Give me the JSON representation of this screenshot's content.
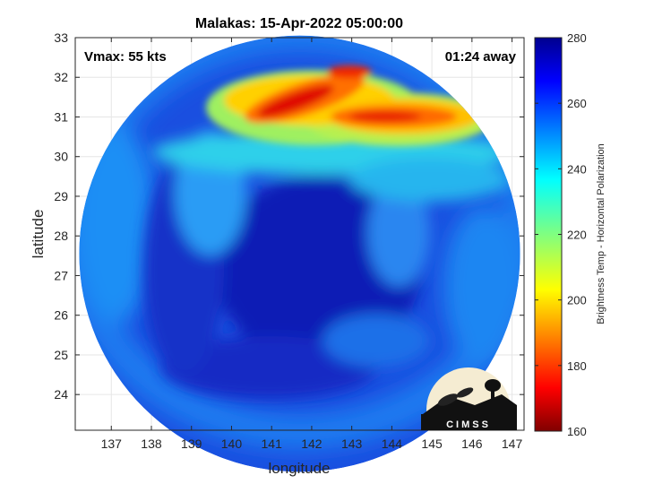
{
  "title": "Malakas: 15-Apr-2022 05:00:00",
  "annotations": {
    "vmax": "Vmax: 55 kts",
    "time_away": "01:24 away"
  },
  "logo_text": "CIMSS",
  "chart_data": {
    "type": "heatmap",
    "title": "Malakas: 15-Apr-2022 05:00:00",
    "xlabel": "longitude",
    "ylabel": "latitude",
    "xlim": [
      136.1,
      147.3
    ],
    "ylim": [
      23.1,
      33.0
    ],
    "xticks": [
      137,
      138,
      139,
      140,
      141,
      142,
      143,
      144,
      145,
      146,
      147
    ],
    "yticks": [
      24,
      25,
      26,
      27,
      28,
      29,
      30,
      31,
      32,
      33
    ],
    "grid": true,
    "colorbar": {
      "label": "Brightness Temp - Horizontal Polarization",
      "range": [
        160,
        280
      ],
      "ticks": [
        160,
        180,
        200,
        220,
        240,
        260,
        280
      ],
      "colormap": "jet"
    },
    "swath": {
      "shape": "circle",
      "center_lon": 141.7,
      "center_lat": 27.55,
      "radius_lon": 5.5,
      "radius_lat": 5.5
    },
    "features": [
      {
        "kind": "cold-band",
        "lon": [
          140.5,
          144.5
        ],
        "lat": [
          30.3,
          32.3
        ],
        "min_tb": 175
      },
      {
        "kind": "cold-band",
        "lon": [
          142.5,
          145.8
        ],
        "lat": [
          30.2,
          31.4
        ],
        "min_tb": 180
      },
      {
        "kind": "warm-center",
        "lon": 142.3,
        "lat": 27.1,
        "tb": 270
      }
    ]
  }
}
